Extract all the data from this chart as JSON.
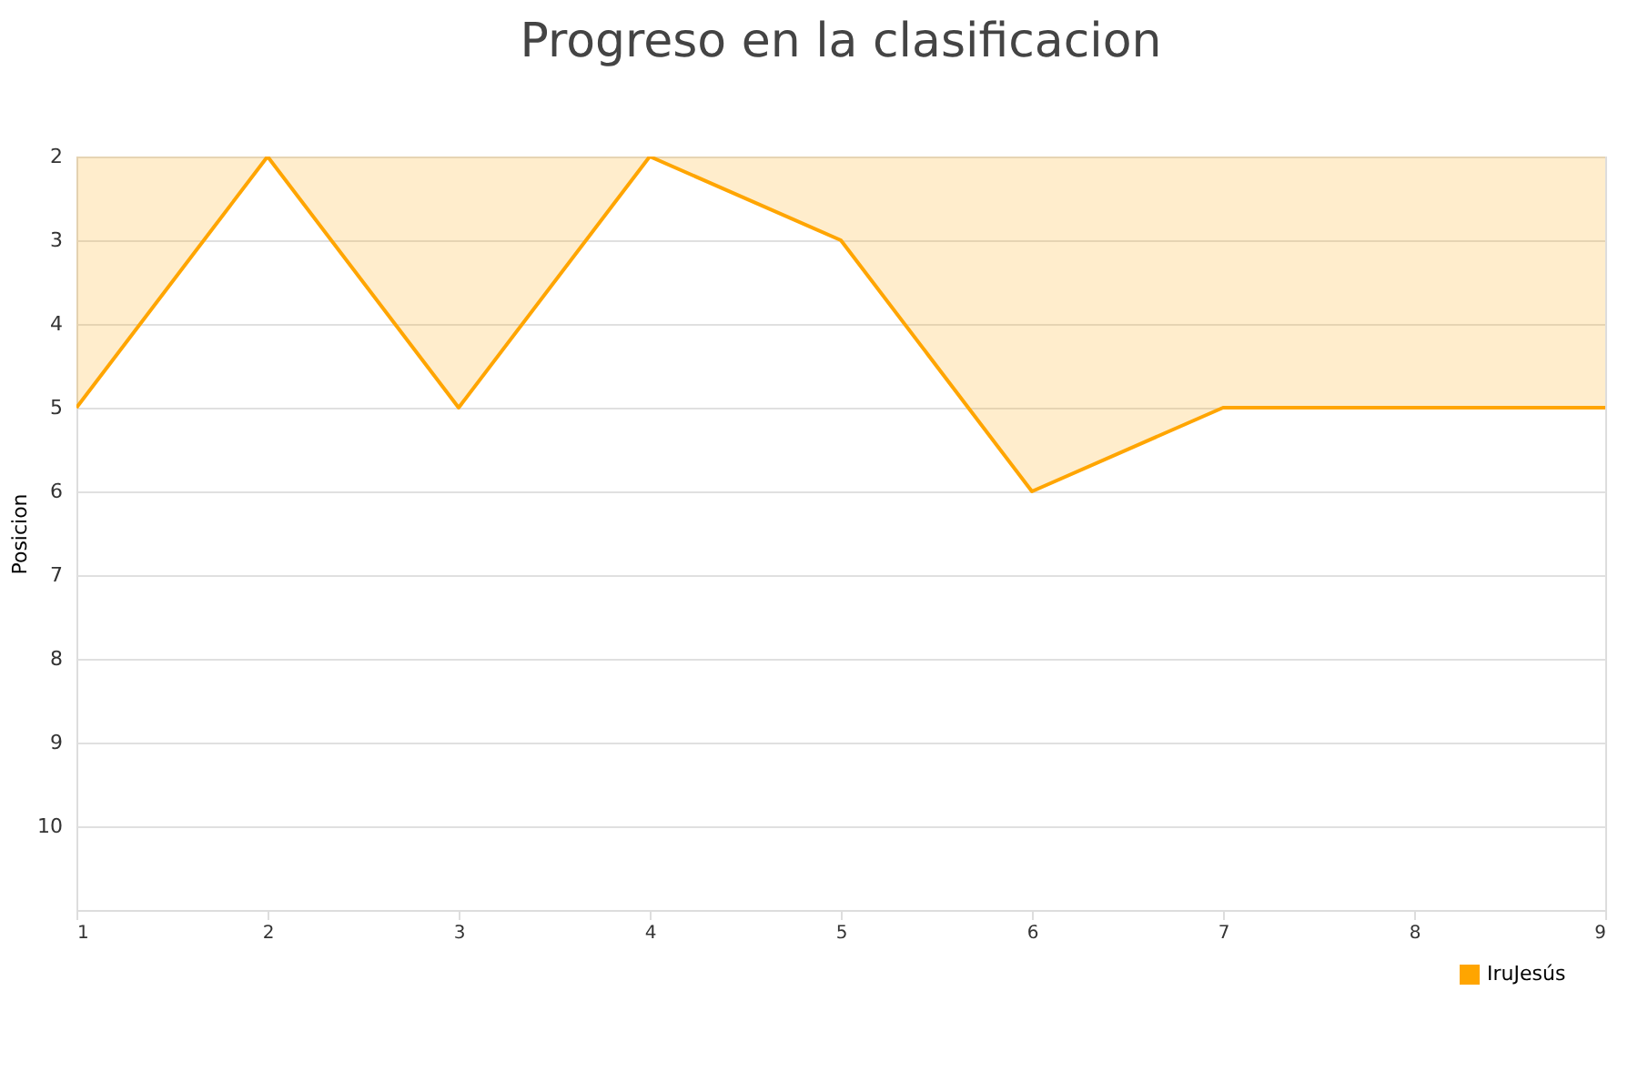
{
  "chart_data": {
    "type": "area",
    "title": "Progreso en la clasificacion",
    "ylabel": "Posicion",
    "x": [
      1,
      2,
      3,
      4,
      5,
      6,
      7,
      8,
      9
    ],
    "series": [
      {
        "name": "IruJesús",
        "color": "#ffa500",
        "values": [
          5,
          2,
          5,
          2,
          3,
          6,
          5,
          5,
          5
        ]
      }
    ],
    "xlim": [
      1,
      9
    ],
    "xticks": [
      1,
      2,
      3,
      4,
      5,
      6,
      7,
      8,
      9
    ],
    "ylim": [
      11,
      2
    ],
    "yticks": [
      2,
      3,
      4,
      5,
      6,
      7,
      8,
      9,
      10
    ],
    "grid": "y",
    "legend": "bottom right",
    "marker": "none",
    "line_style": "solid"
  }
}
